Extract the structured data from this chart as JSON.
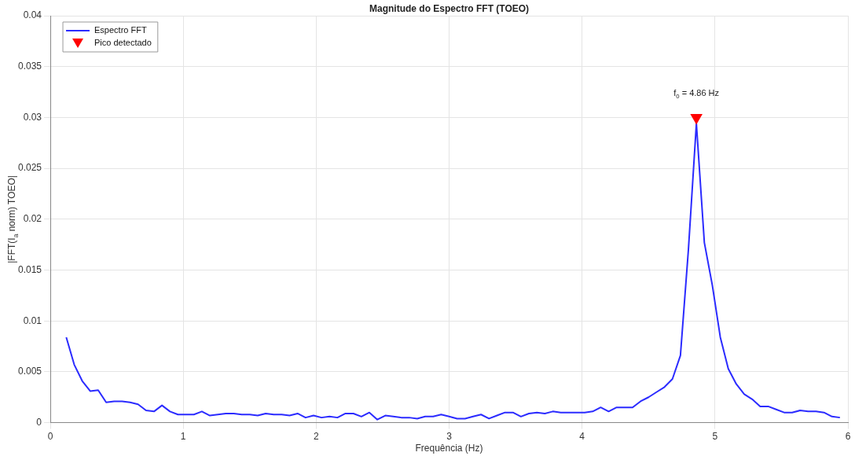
{
  "chart_data": {
    "type": "line",
    "title": "Magnitude do Espectro FFT (TOEO)",
    "xlabel": "Frequência (Hz)",
    "ylabel": "|FFT(I$_{a}$ norm) TOEO|",
    "xlim": [
      0,
      6
    ],
    "xticks": [
      0,
      1,
      2,
      3,
      4,
      5,
      6
    ],
    "ylim": [
      0,
      0.04
    ],
    "yticks": [
      0,
      0.005,
      0.01,
      0.015,
      0.02,
      0.025,
      0.03,
      0.035,
      0.04
    ],
    "grid": true,
    "legend": "top left",
    "line_style": "solid",
    "annotations": [
      {
        "text": "f$_{0}$ = 4.86 Hz",
        "x": 4.86,
        "y": 0.0294
      }
    ],
    "series": [
      {
        "name": "Espectro FFT",
        "color": "#2b2bff",
        "marker": "none",
        "x": [
          0.12,
          0.18,
          0.24,
          0.3,
          0.36,
          0.42,
          0.48,
          0.54,
          0.6,
          0.66,
          0.72,
          0.78,
          0.84,
          0.9,
          0.96,
          1.02,
          1.08,
          1.14,
          1.2,
          1.26,
          1.32,
          1.38,
          1.44,
          1.5,
          1.56,
          1.62,
          1.68,
          1.74,
          1.8,
          1.86,
          1.92,
          1.98,
          2.04,
          2.1,
          2.16,
          2.22,
          2.28,
          2.34,
          2.4,
          2.46,
          2.52,
          2.58,
          2.64,
          2.7,
          2.76,
          2.82,
          2.88,
          2.94,
          3.0,
          3.06,
          3.12,
          3.18,
          3.24,
          3.3,
          3.36,
          3.42,
          3.48,
          3.54,
          3.6,
          3.66,
          3.72,
          3.78,
          3.84,
          3.9,
          3.96,
          4.02,
          4.08,
          4.14,
          4.2,
          4.26,
          4.32,
          4.38,
          4.44,
          4.5,
          4.56,
          4.62,
          4.68,
          4.74,
          4.8,
          4.86,
          4.92,
          4.98,
          5.04,
          5.1,
          5.16,
          5.22,
          5.28,
          5.34,
          5.4,
          5.46,
          5.52,
          5.58,
          5.64,
          5.7,
          5.76,
          5.82,
          5.88,
          5.94
        ],
        "values": [
          0.0084,
          0.0057,
          0.0041,
          0.0031,
          0.0032,
          0.002,
          0.0021,
          0.0021,
          0.002,
          0.0018,
          0.0012,
          0.0011,
          0.0017,
          0.0011,
          0.0008,
          0.0008,
          0.0008,
          0.0011,
          0.0007,
          0.0008,
          0.0009,
          0.0009,
          0.0008,
          0.0008,
          0.0007,
          0.0009,
          0.0008,
          0.0008,
          0.0007,
          0.0009,
          0.0005,
          0.0007,
          0.0005,
          0.0006,
          0.0005,
          0.0009,
          0.0009,
          0.0006,
          0.001,
          0.0003,
          0.0007,
          0.0006,
          0.0005,
          0.0005,
          0.0004,
          0.0006,
          0.0006,
          0.0008,
          0.0006,
          0.0004,
          0.0004,
          0.0006,
          0.0008,
          0.0004,
          0.0007,
          0.001,
          0.001,
          0.0006,
          0.0009,
          0.001,
          0.0009,
          0.0011,
          0.001,
          0.001,
          0.001,
          0.001,
          0.0011,
          0.0015,
          0.0011,
          0.0015,
          0.0015,
          0.0015,
          0.0021,
          0.0025,
          0.003,
          0.0035,
          0.0043,
          0.0066,
          0.017,
          0.0294,
          0.0177,
          0.0135,
          0.0084,
          0.0053,
          0.0038,
          0.0028,
          0.0023,
          0.0016,
          0.0016,
          0.0013,
          0.001,
          0.001,
          0.0012,
          0.0011,
          0.0011,
          0.001,
          0.0006,
          0.0005
        ]
      },
      {
        "name": "Pico detectado",
        "type": "scatter",
        "color": "#ff0000",
        "marker": "triangle",
        "x": [
          4.86
        ],
        "values": [
          0.03
        ]
      }
    ]
  }
}
